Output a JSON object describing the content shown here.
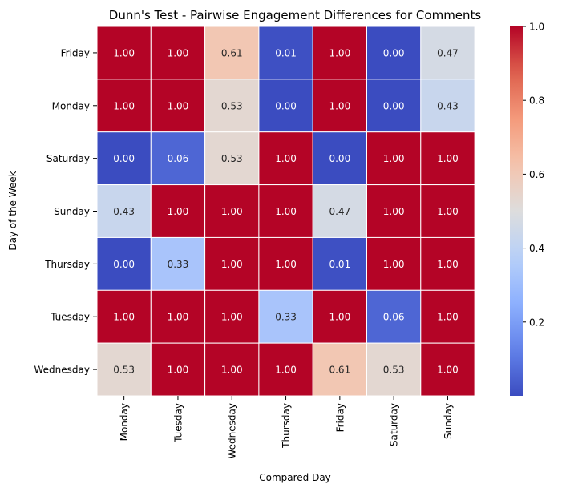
{
  "chart_data": {
    "type": "heatmap",
    "title": "Dunn's Test - Pairwise Engagement Differences for Comments",
    "xlabel": "Compared Day",
    "ylabel": "Day of the Week",
    "x_categories": [
      "Monday",
      "Tuesday",
      "Wednesday",
      "Thursday",
      "Friday",
      "Saturday",
      "Sunday"
    ],
    "y_categories": [
      "Friday",
      "Monday",
      "Saturday",
      "Sunday",
      "Thursday",
      "Tuesday",
      "Wednesday"
    ],
    "values": [
      [
        1.0,
        1.0,
        0.61,
        0.01,
        1.0,
        0.0,
        0.47
      ],
      [
        1.0,
        1.0,
        0.53,
        0.0,
        1.0,
        0.0,
        0.43
      ],
      [
        0.0,
        0.06,
        0.53,
        1.0,
        0.0,
        1.0,
        1.0
      ],
      [
        0.43,
        1.0,
        1.0,
        1.0,
        0.47,
        1.0,
        1.0
      ],
      [
        0.0,
        0.33,
        1.0,
        1.0,
        0.01,
        1.0,
        1.0
      ],
      [
        1.0,
        1.0,
        1.0,
        0.33,
        1.0,
        0.06,
        1.0
      ],
      [
        0.53,
        1.0,
        1.0,
        1.0,
        0.61,
        0.53,
        1.0
      ]
    ],
    "value_labels": [
      [
        "1.00",
        "1.00",
        "0.61",
        "0.01",
        "1.00",
        "0.00",
        "0.47"
      ],
      [
        "1.00",
        "1.00",
        "0.53",
        "0.00",
        "1.00",
        "0.00",
        "0.43"
      ],
      [
        "0.00",
        "0.06",
        "0.53",
        "1.00",
        "0.00",
        "1.00",
        "1.00"
      ],
      [
        "0.43",
        "1.00",
        "1.00",
        "1.00",
        "0.47",
        "1.00",
        "1.00"
      ],
      [
        "0.00",
        "0.33",
        "1.00",
        "1.00",
        "0.01",
        "1.00",
        "1.00"
      ],
      [
        "1.00",
        "1.00",
        "1.00",
        "0.33",
        "1.00",
        "0.06",
        "1.00"
      ],
      [
        "0.53",
        "1.00",
        "1.00",
        "1.00",
        "0.61",
        "0.53",
        "1.00"
      ]
    ],
    "colormap": "coolwarm",
    "colorbar": {
      "range": [
        0.0,
        1.0
      ],
      "ticks": [
        0.2,
        0.4,
        0.6,
        0.8,
        1.0
      ],
      "tick_labels": [
        "0.2",
        "0.4",
        "0.6",
        "0.8",
        "1.0"
      ]
    },
    "cell_border_color": "#ffffff",
    "annot_color_dark_bg": "#ffffff",
    "annot_color_light_bg": "#262626"
  }
}
